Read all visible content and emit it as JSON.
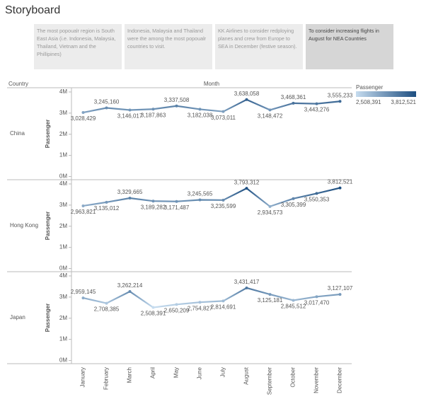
{
  "header": {
    "title": "Storyboard"
  },
  "story_points": [
    "The most popoualr region is South East Asia (i.e. Indonesia, Malaysia, Thailand, Vietnam and the Phillipines)",
    "Indonesia, Malaysia and Thailand were the among the most popoualr countries to visit.",
    "KK Airlines to consider redploying planes and crew from Europe to SEA in December (festive season).",
    "To consider increasing flights in August for NEA Countries"
  ],
  "chart_data": {
    "type": "line",
    "row_header": "Country",
    "x_axis_label": "Month",
    "y_axis_label": "Passenger",
    "categories": [
      "January",
      "February",
      "March",
      "April",
      "May",
      "June",
      "July",
      "August",
      "September",
      "October",
      "November",
      "December"
    ],
    "ylim": [
      -150000,
      4200000
    ],
    "yticks": [
      {
        "value": 0,
        "label": "0M"
      },
      {
        "value": 1000000,
        "label": "1M"
      },
      {
        "value": 2000000,
        "label": "2M"
      },
      {
        "value": 3000000,
        "label": "3M"
      },
      {
        "value": 4000000,
        "label": "4M"
      }
    ],
    "color_scale": {
      "title": "Passenger",
      "colors": [
        "#c6dcef",
        "#1d4e80"
      ],
      "min": {
        "value": 2508391,
        "label": "2,508,391"
      },
      "max": {
        "value": 3812521,
        "label": "3,812,521"
      }
    },
    "series": [
      {
        "name": "China",
        "values": [
          3028429,
          3245160,
          3146017,
          3187863,
          3337508,
          3182038,
          3073011,
          3638058,
          3148472,
          3468361,
          3443276,
          3555233
        ],
        "value_labels": [
          "3,028,429",
          "3,245,160",
          "3,146,017",
          "3,187,863",
          "3,337,508",
          "3,182,038",
          "3,073,011",
          "3,638,058",
          "3,148,472",
          "3,468,361",
          "3,443,276",
          "3,555,233"
        ]
      },
      {
        "name": "Hong Kong",
        "values": [
          2963821,
          3135012,
          3329665,
          3189282,
          3171487,
          3245565,
          3235599,
          3793312,
          2934573,
          3305399,
          3550353,
          3812521
        ],
        "value_labels": [
          "2,963,821",
          "3,135,012",
          "3,329,665",
          "3,189,282",
          "3,171,487",
          "3,245,565",
          "3,235,599",
          "3,793,312",
          "2,934,573",
          "3,305,399",
          "3,550,353",
          "3,812,521"
        ]
      },
      {
        "name": "Japan",
        "values": [
          2959145,
          2708385,
          3262214,
          2508391,
          2650209,
          2754827,
          2814691,
          3431417,
          3125181,
          2845512,
          3017470,
          3127107
        ],
        "value_labels": [
          "2,959,145",
          "2,708,385",
          "3,262,214",
          "2,508,391",
          "2,650,209",
          "2,754,827",
          "2,814,691",
          "3,431,417",
          "3,125,181",
          "2,845,512",
          "3,017,470",
          "3,127,107"
        ]
      }
    ]
  }
}
